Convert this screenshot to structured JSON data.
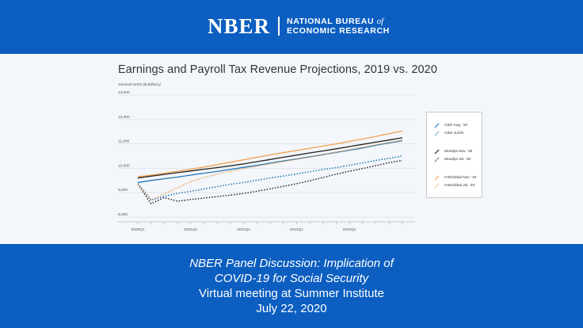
{
  "header": {
    "logo_text": "NBER",
    "org_line1": "NATIONAL BUREAU",
    "org_of": "of",
    "org_line2": "ECONOMIC RESEARCH"
  },
  "footer": {
    "line1": "NBER Panel Discussion: Implication of",
    "line2": "COVID-19 for Social Security",
    "line3": "Virtual meeting at Summer Institute",
    "line4": "July 22, 2020"
  },
  "colors": {
    "header_bg": "#0c5ec0",
    "cbo": "#1f77b4",
    "moodys": "#222222",
    "ihs": "#f0a14e"
  },
  "chart_data": {
    "type": "line",
    "title": "Earnings and Payroll Tax Revenue Projections, 2019 vs. 2020",
    "ylabel": "Nominal WSD ($ Billions)",
    "ylim": [
      8000,
      13000
    ],
    "yticks": [
      "13,000",
      "12,000",
      "11,000",
      "10,000",
      "9,000",
      "8,000"
    ],
    "ytick_values": [
      13000,
      12000,
      11000,
      10000,
      9000,
      8000
    ],
    "x": [
      "2020Q1",
      "2020Q2",
      "2020Q3",
      "2020Q4",
      "2021Q1",
      "2021Q2",
      "2021Q3",
      "2021Q4",
      "2022Q1",
      "2022Q2",
      "2022Q3",
      "2022Q4",
      "2023Q1",
      "2023Q2",
      "2023Q3",
      "2023Q4",
      "2024Q1",
      "2024Q2",
      "2024Q3",
      "2024Q4",
      "2025Q1"
    ],
    "xticks": [
      "2020Q1",
      "2021Q1",
      "2022Q1",
      "2023Q1",
      "2024Q1"
    ],
    "grid": true,
    "legend_position": "right",
    "series": [
      {
        "name": "CBO Aug. '19",
        "style": "solid",
        "color": "#1f77b4",
        "values": [
          9420,
          9500,
          9570,
          9640,
          9720,
          9800,
          9870,
          9950,
          10040,
          10120,
          10210,
          10300,
          10380,
          10470,
          10560,
          10650,
          10740,
          10830,
          10940,
          11040,
          11130
        ]
      },
      {
        "name": "CBO Jul'20",
        "style": "dotted",
        "color": "#1f77b4",
        "values": [
          9380,
          8700,
          8850,
          8970,
          9060,
          9150,
          9250,
          9340,
          9420,
          9510,
          9600,
          9680,
          9770,
          9860,
          9950,
          10030,
          10120,
          10220,
          10320,
          10410,
          10500
        ]
      },
      {
        "name": "Moodys Nov. '19",
        "style": "solid",
        "color": "#222222",
        "values": [
          9600,
          9680,
          9750,
          9820,
          9890,
          9960,
          10030,
          10100,
          10180,
          10270,
          10360,
          10450,
          10540,
          10630,
          10710,
          10800,
          10890,
          10980,
          11070,
          11160,
          11250
        ]
      },
      {
        "name": "Moodys Jul. '20",
        "style": "dotted",
        "color": "#222222",
        "values": [
          9330,
          8550,
          8800,
          8650,
          8720,
          8780,
          8840,
          8900,
          8970,
          9060,
          9160,
          9260,
          9370,
          9490,
          9620,
          9760,
          9880,
          9990,
          10110,
          10230,
          10320
        ]
      },
      {
        "name": "IHSGlobal Nov. '19",
        "style": "solid",
        "color": "#f0a14e",
        "values": [
          9650,
          9720,
          9800,
          9880,
          9960,
          10050,
          10150,
          10250,
          10350,
          10450,
          10550,
          10640,
          10730,
          10820,
          10910,
          11000,
          11100,
          11200,
          11310,
          11420,
          11530
        ]
      },
      {
        "name": "IHSGlobal Jul. '20",
        "style": "dotted",
        "color": "#f0a14e",
        "values": [
          9330,
          8700,
          8950,
          9200,
          9450,
          9620,
          9760,
          9880,
          9980,
          10080,
          10180,
          10280,
          10370,
          10460,
          10560,
          10660,
          10760,
          10860,
          10960,
          11060,
          11160
        ]
      }
    ]
  }
}
